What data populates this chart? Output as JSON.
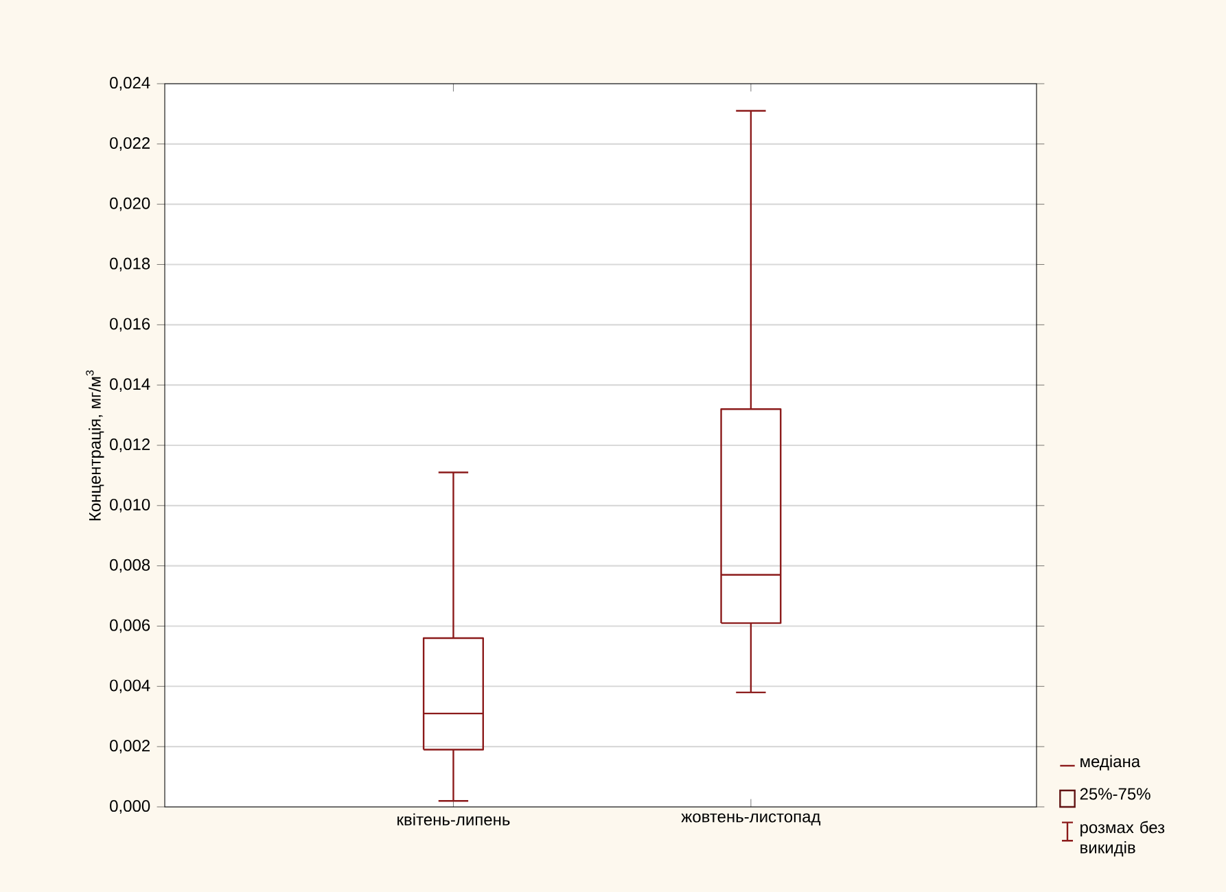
{
  "chart_data": {
    "type": "box",
    "ylabel": "Концентрація, мг/м$^{3}$",
    "categories": [
      "квітень-липень",
      "жовтень-листопад"
    ],
    "series": [
      {
        "color": "#8b1a1a",
        "boxes": [
          {
            "low": 0.0002,
            "q1": 0.0019,
            "median": 0.0031,
            "q3": 0.0056,
            "high": 0.0111
          },
          {
            "low": 0.0038,
            "q1": 0.0061,
            "median": 0.0077,
            "q3": 0.0132,
            "high": 0.0231
          }
        ]
      }
    ],
    "ylim": [
      0,
      0.024
    ],
    "yticks": [
      {
        "value": 0,
        "label": "0,000"
      },
      {
        "value": 0.002,
        "label": "0,002"
      },
      {
        "value": 0.004,
        "label": "0,004"
      },
      {
        "value": 0.006,
        "label": "0,006"
      },
      {
        "value": 0.008,
        "label": "0,008"
      },
      {
        "value": 0.01,
        "label": "0,010"
      },
      {
        "value": 0.012,
        "label": "0,012"
      },
      {
        "value": 0.014,
        "label": "0,014"
      },
      {
        "value": 0.016,
        "label": "0,016"
      },
      {
        "value": 0.018,
        "label": "0,018"
      },
      {
        "value": 0.02,
        "label": "0,020"
      },
      {
        "value": 0.022,
        "label": "0,022"
      },
      {
        "value": 0.024,
        "label": "0,024"
      }
    ],
    "grid": "y",
    "annotations": [
      "медіана",
      "25%-75%",
      "розмах без викидів"
    ]
  }
}
